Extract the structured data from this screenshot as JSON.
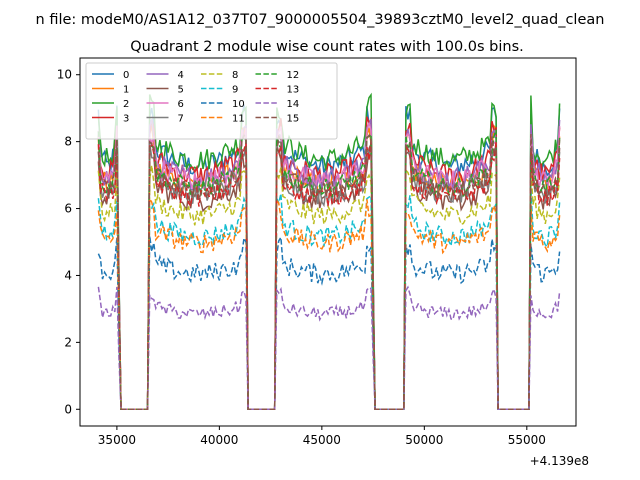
{
  "chart_data": {
    "type": "line",
    "suptitle": "n file: modeM0/AS1A12_037T07_9000005504_39893cztM0_level2_quad_clean",
    "title": "Quadrant 2 module wise count rates with 100.0s bins.",
    "xlabel": "",
    "ylabel": "",
    "x_offset_label": "+4.139e8",
    "xlim": [
      33200,
      57400
    ],
    "ylim": [
      -0.5,
      10.5
    ],
    "xticks": [
      35000,
      40000,
      45000,
      50000,
      55000
    ],
    "xtick_labels": [
      "35000",
      "40000",
      "45000",
      "50000",
      "55000"
    ],
    "yticks": [
      0,
      2,
      4,
      6,
      8,
      10
    ],
    "ytick_labels": [
      "0",
      "2",
      "4",
      "6",
      "8",
      "10"
    ],
    "grid": false,
    "legend_position": "top-left",
    "legend_columns": 4,
    "bins_seconds": 100,
    "active_segments": [
      [
        34100,
        35000
      ],
      [
        36600,
        41300
      ],
      [
        42800,
        47400
      ],
      [
        49100,
        53500
      ],
      [
        55200,
        56600
      ]
    ],
    "gap_segments": [
      [
        35200,
        36500
      ],
      [
        41400,
        42700
      ],
      [
        47600,
        49000
      ],
      [
        53600,
        55100
      ]
    ],
    "series": [
      {
        "name": "0",
        "color": "#1f77b4",
        "dash": "solid",
        "level": 7.9,
        "spread": 0.35
      },
      {
        "name": "1",
        "color": "#ff7f0e",
        "dash": "solid",
        "level": 7.3,
        "spread": 0.35
      },
      {
        "name": "2",
        "color": "#2ca02c",
        "dash": "solid",
        "level": 8.1,
        "spread": 0.35
      },
      {
        "name": "3",
        "color": "#d62728",
        "dash": "solid",
        "level": 7.6,
        "spread": 0.35
      },
      {
        "name": "4",
        "color": "#9467bd",
        "dash": "solid",
        "level": 7.5,
        "spread": 0.35
      },
      {
        "name": "5",
        "color": "#8c564b",
        "dash": "solid",
        "level": 6.8,
        "spread": 0.35
      },
      {
        "name": "6",
        "color": "#e377c2",
        "dash": "solid",
        "level": 7.4,
        "spread": 0.35
      },
      {
        "name": "7",
        "color": "#7f7f7f",
        "dash": "solid",
        "level": 7.0,
        "spread": 0.35
      },
      {
        "name": "8",
        "color": "#bcbd22",
        "dash": "dashed",
        "level": 6.3,
        "spread": 0.3
      },
      {
        "name": "9",
        "color": "#17becf",
        "dash": "dashed",
        "level": 5.6,
        "spread": 0.3
      },
      {
        "name": "10",
        "color": "#1f77b4",
        "dash": "dashed",
        "level": 4.4,
        "spread": 0.3
      },
      {
        "name": "11",
        "color": "#ff7f0e",
        "dash": "dashed",
        "level": 5.4,
        "spread": 0.3
      },
      {
        "name": "12",
        "color": "#2ca02c",
        "dash": "dashed",
        "level": 7.2,
        "spread": 0.3
      },
      {
        "name": "13",
        "color": "#d62728",
        "dash": "dashed",
        "level": 6.9,
        "spread": 0.3
      },
      {
        "name": "14",
        "color": "#9467bd",
        "dash": "dashed",
        "level": 3.1,
        "spread": 0.2
      },
      {
        "name": "15",
        "color": "#8c564b",
        "dash": "dashed",
        "level": 7.1,
        "spread": 0.3
      }
    ]
  }
}
